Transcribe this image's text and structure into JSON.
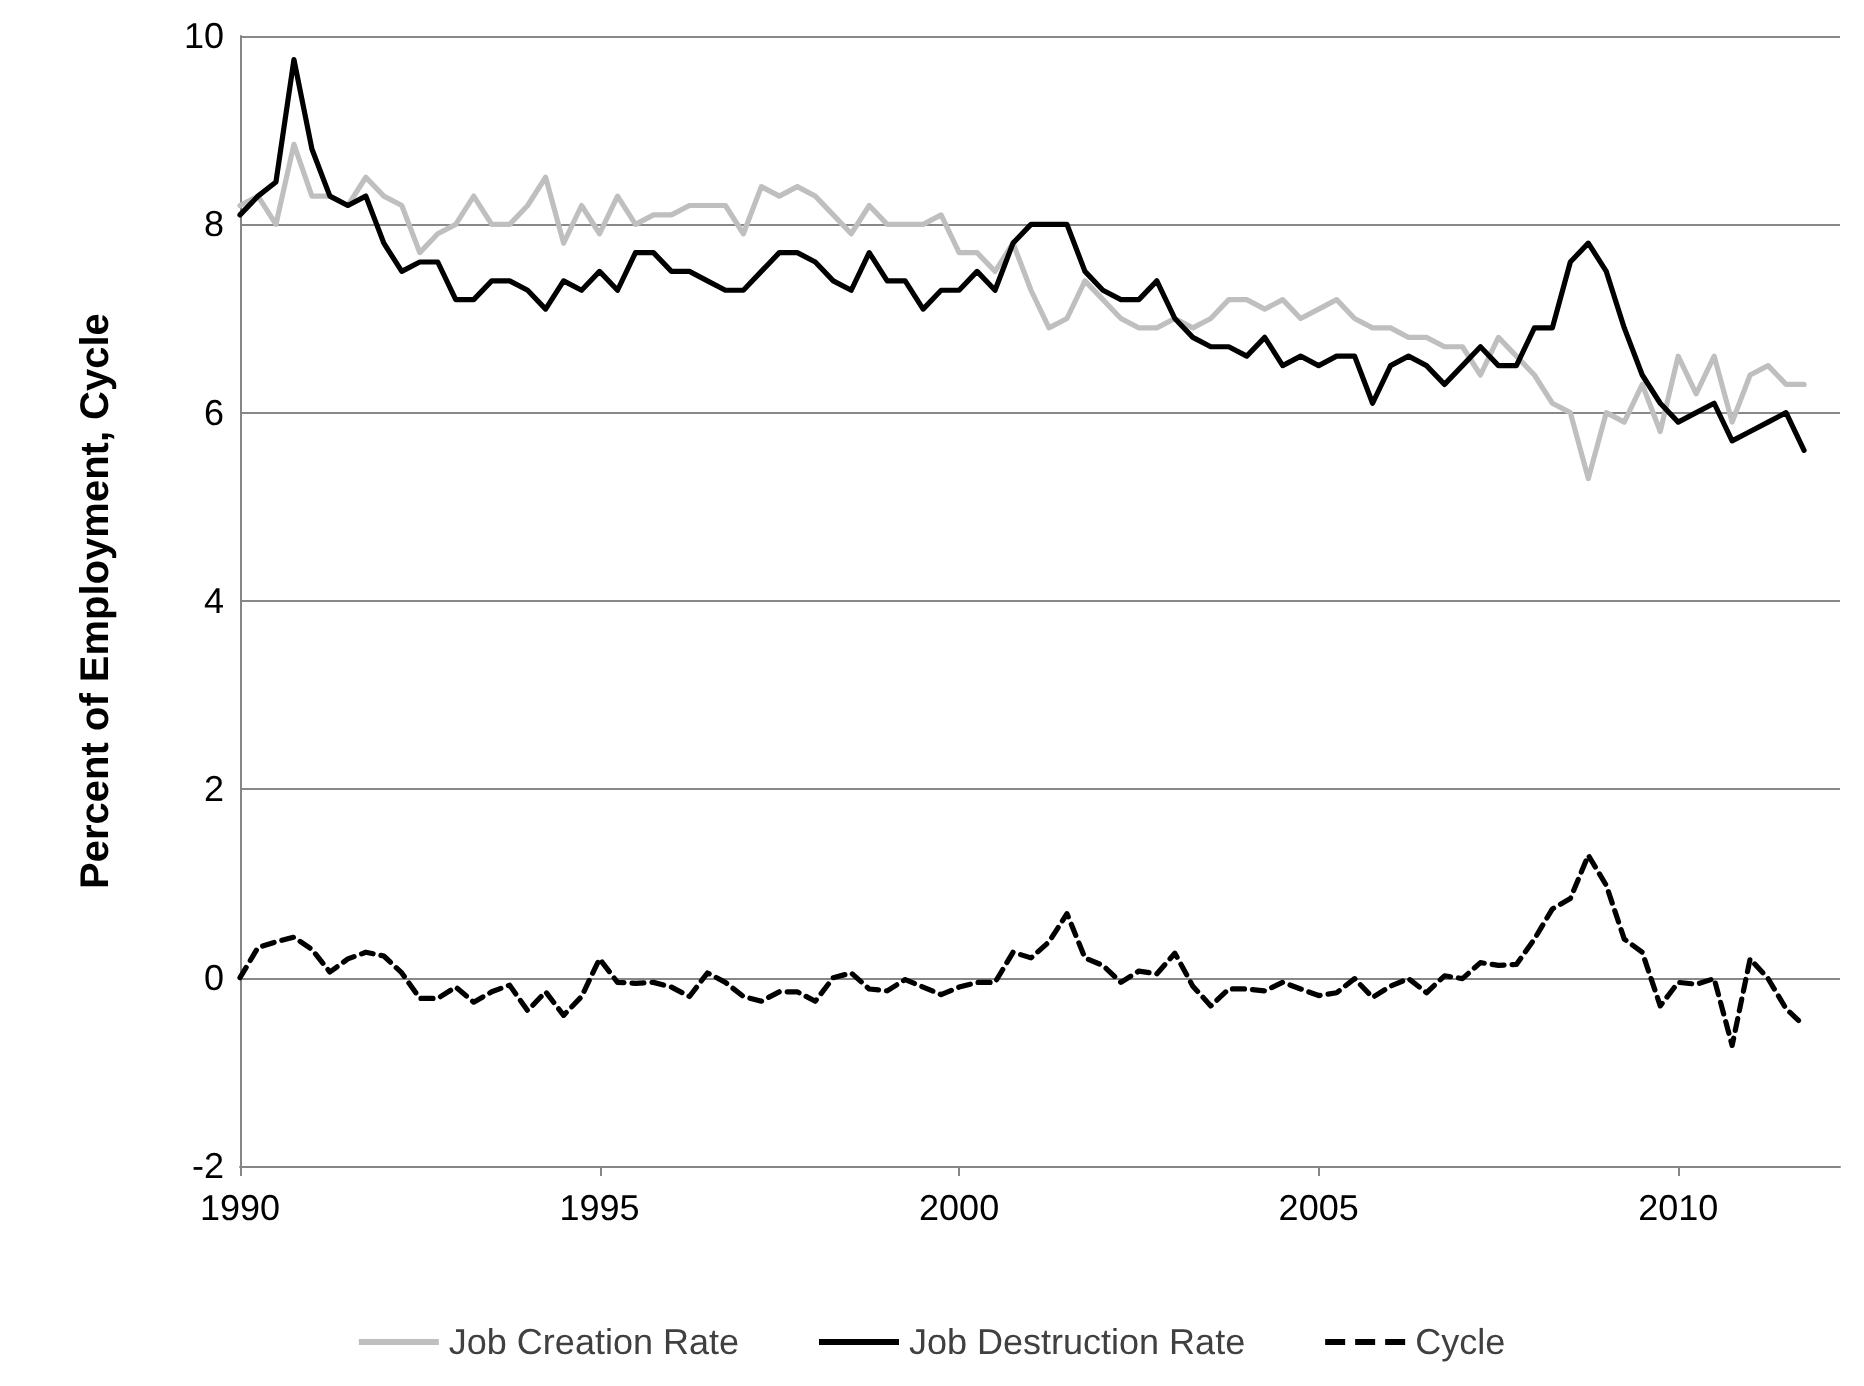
{
  "chart_data": {
    "type": "line",
    "ylabel": "Percent of Employment, Cycle",
    "x": [
      1990,
      1990.25,
      1990.5,
      1990.75,
      1991,
      1991.25,
      1991.5,
      1991.75,
      1992,
      1992.25,
      1992.5,
      1992.75,
      1993,
      1993.25,
      1993.5,
      1993.75,
      1994,
      1994.25,
      1994.5,
      1994.75,
      1995,
      1995.25,
      1995.5,
      1995.75,
      1996,
      1996.25,
      1996.5,
      1996.75,
      1997,
      1997.25,
      1997.5,
      1997.75,
      1998,
      1998.25,
      1998.5,
      1998.75,
      1999,
      1999.25,
      1999.5,
      1999.75,
      2000,
      2000.25,
      2000.5,
      2000.75,
      2001,
      2001.25,
      2001.5,
      2001.75,
      2002,
      2002.25,
      2002.5,
      2002.75,
      2003,
      2003.25,
      2003.5,
      2003.75,
      2004,
      2004.25,
      2004.5,
      2004.75,
      2005,
      2005.25,
      2005.5,
      2005.75,
      2006,
      2006.25,
      2006.5,
      2006.75,
      2007,
      2007.25,
      2007.5,
      2007.75,
      2008,
      2008.25,
      2008.5,
      2008.75,
      2009,
      2009.25,
      2009.5,
      2009.75,
      2010,
      2010.25,
      2010.5,
      2010.75,
      2011,
      2011.25,
      2011.5,
      2011.75
    ],
    "series": [
      {
        "name": "Job Creation Rate",
        "color": "#bfbfbf",
        "line_style": "solid",
        "values": [
          8.2,
          8.3,
          8.0,
          8.85,
          8.3,
          8.3,
          8.2,
          8.5,
          8.3,
          8.2,
          7.7,
          7.9,
          8.0,
          8.3,
          8.0,
          8.0,
          8.2,
          8.5,
          7.8,
          8.2,
          7.9,
          8.3,
          8.0,
          8.1,
          8.1,
          8.2,
          8.2,
          8.2,
          7.9,
          8.4,
          8.3,
          8.4,
          8.3,
          8.1,
          7.9,
          8.2,
          8.0,
          8.0,
          8.0,
          8.1,
          7.7,
          7.7,
          7.5,
          7.8,
          7.3,
          6.9,
          7.0,
          7.4,
          7.2,
          7.0,
          6.9,
          6.9,
          7.0,
          6.9,
          7.0,
          7.2,
          7.2,
          7.1,
          7.2,
          7.0,
          7.1,
          7.2,
          7.0,
          6.9,
          6.9,
          6.8,
          6.8,
          6.7,
          6.7,
          6.4,
          6.8,
          6.6,
          6.4,
          6.1,
          6.0,
          5.3,
          6.0,
          5.9,
          6.3,
          5.8,
          6.6,
          6.2,
          6.6,
          5.9,
          6.4,
          6.5,
          6.3,
          6.3
        ]
      },
      {
        "name": "Job Destruction Rate",
        "color": "#000000",
        "line_style": "solid",
        "values": [
          8.1,
          8.3,
          8.45,
          9.75,
          8.8,
          8.3,
          8.2,
          8.3,
          7.8,
          7.5,
          7.6,
          7.6,
          7.2,
          7.2,
          7.4,
          7.4,
          7.3,
          7.1,
          7.4,
          7.3,
          7.5,
          7.3,
          7.7,
          7.7,
          7.5,
          7.5,
          7.4,
          7.3,
          7.3,
          7.5,
          7.7,
          7.7,
          7.6,
          7.4,
          7.3,
          7.7,
          7.4,
          7.4,
          7.1,
          7.3,
          7.3,
          7.5,
          7.3,
          7.8,
          8.0,
          8.0,
          8.0,
          7.5,
          7.3,
          7.2,
          7.2,
          7.4,
          7.0,
          6.8,
          6.7,
          6.7,
          6.6,
          6.8,
          6.5,
          6.6,
          6.5,
          6.6,
          6.6,
          6.1,
          6.5,
          6.6,
          6.5,
          6.3,
          6.5,
          6.7,
          6.5,
          6.5,
          6.9,
          6.9,
          7.6,
          7.8,
          7.5,
          6.9,
          6.4,
          6.1,
          5.9,
          6.0,
          6.1,
          5.7,
          5.8,
          5.9,
          6.0,
          5.6
        ]
      },
      {
        "name": "Cycle",
        "color": "#000000",
        "line_style": "dashed",
        "values": [
          0.0,
          0.32,
          0.38,
          0.43,
          0.3,
          0.06,
          0.2,
          0.27,
          0.23,
          0.05,
          -0.22,
          -0.22,
          -0.1,
          -0.26,
          -0.15,
          -0.08,
          -0.35,
          -0.15,
          -0.4,
          -0.2,
          0.2,
          -0.05,
          -0.06,
          -0.05,
          -0.1,
          -0.2,
          0.05,
          -0.05,
          -0.2,
          -0.25,
          -0.15,
          -0.15,
          -0.25,
          0.0,
          0.05,
          -0.12,
          -0.14,
          -0.02,
          -0.1,
          -0.18,
          -0.1,
          -0.05,
          -0.05,
          0.27,
          0.21,
          0.38,
          0.68,
          0.21,
          0.13,
          -0.05,
          0.07,
          0.04,
          0.26,
          -0.09,
          -0.3,
          -0.12,
          -0.12,
          -0.14,
          -0.05,
          -0.12,
          -0.19,
          -0.16,
          -0.01,
          -0.21,
          -0.09,
          -0.01,
          -0.16,
          0.02,
          -0.01,
          0.16,
          0.13,
          0.14,
          0.41,
          0.73,
          0.84,
          1.3,
          0.98,
          0.41,
          0.27,
          -0.3,
          -0.05,
          -0.07,
          -0.01,
          -0.72,
          0.2,
          -0.01,
          -0.33,
          -0.51
        ]
      }
    ],
    "xlim": [
      1990,
      2012.25
    ],
    "xticks": [
      1990,
      1995,
      2000,
      2005,
      2010
    ],
    "ylim": [
      -2,
      10
    ],
    "yticks": [
      -2,
      0,
      2,
      4,
      6,
      8,
      10
    ],
    "grid": "y",
    "legend": "bottom",
    "marker": "none"
  }
}
